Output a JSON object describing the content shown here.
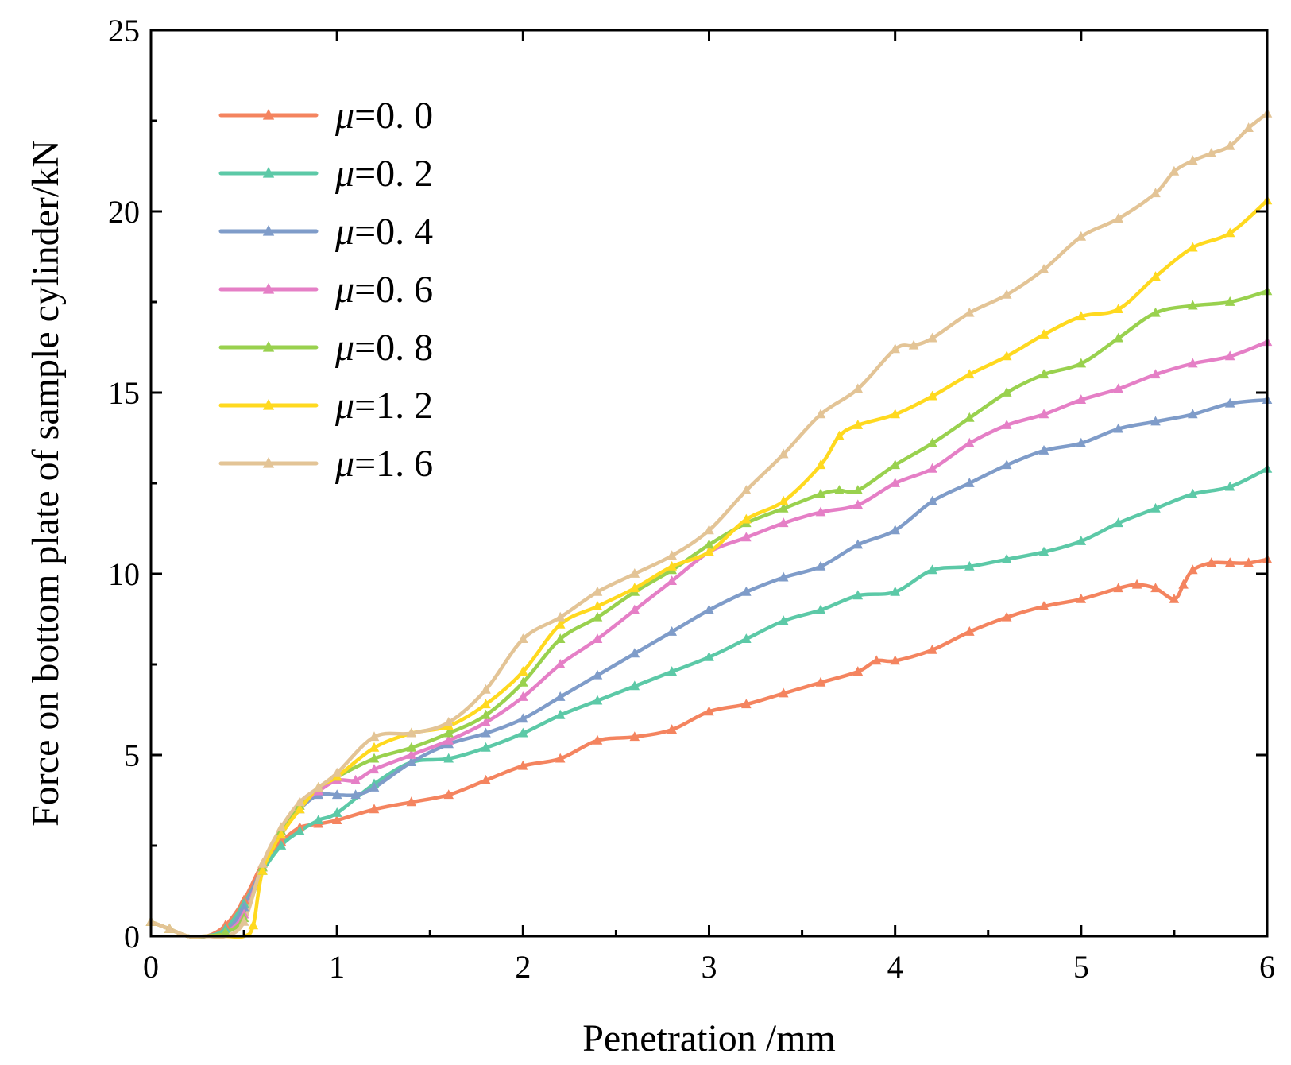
{
  "chart_data": {
    "type": "line",
    "title": "",
    "xlabel": "Penetration /mm",
    "ylabel": "Force on bottom plate of sample cylinder/kN",
    "xlim": [
      0,
      6
    ],
    "ylim": [
      0,
      25
    ],
    "xticks": [
      "0",
      "1",
      "2",
      "3",
      "4",
      "5",
      "6"
    ],
    "yticks": [
      "0",
      "5",
      "10",
      "15",
      "20",
      "25"
    ],
    "grid": false,
    "legend_position": "top-left",
    "marker": "triangle",
    "series": [
      {
        "name": "μ=0. 0",
        "mu_symbol": "μ",
        "mu_value": "=0. 0",
        "color": "#F4845F",
        "x": [
          0,
          0.1,
          0.2,
          0.3,
          0.4,
          0.5,
          0.6,
          0.7,
          0.8,
          0.9,
          1.0,
          1.2,
          1.4,
          1.6,
          1.8,
          2.0,
          2.2,
          2.4,
          2.6,
          2.8,
          3.0,
          3.2,
          3.4,
          3.6,
          3.8,
          3.9,
          4.0,
          4.2,
          4.4,
          4.6,
          4.8,
          5.0,
          5.2,
          5.3,
          5.4,
          5.5,
          5.55,
          5.6,
          5.7,
          5.8,
          5.9,
          6.0
        ],
        "y": [
          0.4,
          0.2,
          0.0,
          0.0,
          0.3,
          1.0,
          2.0,
          2.6,
          3.0,
          3.1,
          3.2,
          3.5,
          3.7,
          3.9,
          4.3,
          4.7,
          4.9,
          5.4,
          5.5,
          5.7,
          6.2,
          6.4,
          6.7,
          7.0,
          7.3,
          7.6,
          7.6,
          7.9,
          8.4,
          8.8,
          9.1,
          9.3,
          9.6,
          9.7,
          9.6,
          9.3,
          9.7,
          10.1,
          10.3,
          10.3,
          10.3,
          10.4
        ]
      },
      {
        "name": "μ=0. 2",
        "mu_symbol": "μ",
        "mu_value": "=0. 2",
        "color": "#5CC9A7",
        "x": [
          0,
          0.1,
          0.2,
          0.3,
          0.4,
          0.5,
          0.6,
          0.7,
          0.8,
          0.9,
          1.0,
          1.2,
          1.4,
          1.6,
          1.8,
          2.0,
          2.2,
          2.4,
          2.6,
          2.8,
          3.0,
          3.2,
          3.4,
          3.6,
          3.8,
          4.0,
          4.2,
          4.4,
          4.6,
          4.8,
          5.0,
          5.2,
          5.4,
          5.6,
          5.8,
          6.0
        ],
        "y": [
          0.4,
          0.2,
          0.0,
          0.0,
          0.2,
          0.9,
          1.8,
          2.5,
          2.9,
          3.2,
          3.4,
          4.2,
          4.8,
          4.9,
          5.2,
          5.6,
          6.1,
          6.5,
          6.9,
          7.3,
          7.7,
          8.2,
          8.7,
          9.0,
          9.4,
          9.5,
          10.1,
          10.2,
          10.4,
          10.6,
          10.9,
          11.4,
          11.8,
          12.2,
          12.4,
          12.9
        ]
      },
      {
        "name": "μ=0. 4",
        "mu_symbol": "μ",
        "mu_value": "=0. 4",
        "color": "#7F9CC9",
        "x": [
          0,
          0.1,
          0.2,
          0.3,
          0.4,
          0.5,
          0.6,
          0.7,
          0.8,
          0.9,
          1.0,
          1.1,
          1.2,
          1.4,
          1.6,
          1.8,
          2.0,
          2.2,
          2.4,
          2.6,
          2.8,
          3.0,
          3.2,
          3.4,
          3.6,
          3.8,
          4.0,
          4.2,
          4.4,
          4.6,
          4.8,
          5.0,
          5.2,
          5.4,
          5.6,
          5.8,
          6.0
        ],
        "y": [
          0.4,
          0.2,
          0.0,
          0.0,
          0.1,
          0.8,
          1.9,
          2.8,
          3.5,
          3.9,
          3.9,
          3.9,
          4.1,
          4.8,
          5.3,
          5.6,
          6.0,
          6.6,
          7.2,
          7.8,
          8.4,
          9.0,
          9.5,
          9.9,
          10.2,
          10.8,
          11.2,
          12.0,
          12.5,
          13.0,
          13.4,
          13.6,
          14.0,
          14.2,
          14.4,
          14.7,
          14.8
        ]
      },
      {
        "name": "μ=0. 6",
        "mu_symbol": "μ",
        "mu_value": "=0. 6",
        "color": "#E57FC6",
        "x": [
          0,
          0.1,
          0.2,
          0.3,
          0.4,
          0.5,
          0.6,
          0.7,
          0.8,
          0.9,
          1.0,
          1.1,
          1.2,
          1.4,
          1.6,
          1.8,
          2.0,
          2.2,
          2.4,
          2.6,
          2.8,
          3.0,
          3.2,
          3.4,
          3.6,
          3.8,
          4.0,
          4.2,
          4.4,
          4.6,
          4.8,
          5.0,
          5.2,
          5.4,
          5.6,
          5.8,
          6.0
        ],
        "y": [
          0.4,
          0.2,
          0.0,
          0.0,
          0.1,
          0.6,
          1.9,
          2.9,
          3.6,
          4.0,
          4.3,
          4.3,
          4.6,
          5.0,
          5.4,
          5.9,
          6.6,
          7.5,
          8.2,
          9.0,
          9.8,
          10.6,
          11.0,
          11.4,
          11.7,
          11.9,
          12.5,
          12.9,
          13.6,
          14.1,
          14.4,
          14.8,
          15.1,
          15.5,
          15.8,
          16.0,
          16.4
        ]
      },
      {
        "name": "μ=0. 8",
        "mu_symbol": "μ",
        "mu_value": "=0. 8",
        "color": "#99D14E",
        "x": [
          0,
          0.1,
          0.2,
          0.3,
          0.4,
          0.5,
          0.6,
          0.7,
          0.8,
          0.9,
          1.0,
          1.2,
          1.4,
          1.6,
          1.8,
          2.0,
          2.2,
          2.4,
          2.6,
          2.8,
          3.0,
          3.2,
          3.4,
          3.6,
          3.7,
          3.8,
          4.0,
          4.2,
          4.4,
          4.6,
          4.8,
          5.0,
          5.2,
          5.4,
          5.6,
          5.8,
          6.0
        ],
        "y": [
          0.4,
          0.2,
          0.0,
          0.0,
          0.1,
          0.5,
          1.9,
          2.9,
          3.6,
          4.1,
          4.4,
          4.9,
          5.2,
          5.6,
          6.1,
          7.0,
          8.2,
          8.8,
          9.5,
          10.1,
          10.8,
          11.4,
          11.8,
          12.2,
          12.3,
          12.3,
          13.0,
          13.6,
          14.3,
          15.0,
          15.5,
          15.8,
          16.5,
          17.2,
          17.4,
          17.5,
          17.8
        ]
      },
      {
        "name": "μ=1. 2",
        "mu_symbol": "μ",
        "mu_value": "=1. 2",
        "color": "#FFD91F",
        "x": [
          0,
          0.1,
          0.2,
          0.3,
          0.4,
          0.5,
          0.55,
          0.6,
          0.7,
          0.8,
          0.9,
          1.0,
          1.2,
          1.4,
          1.6,
          1.8,
          2.0,
          2.2,
          2.4,
          2.6,
          2.8,
          3.0,
          3.2,
          3.4,
          3.6,
          3.7,
          3.8,
          4.0,
          4.2,
          4.4,
          4.6,
          4.8,
          5.0,
          5.2,
          5.4,
          5.6,
          5.8,
          6.0
        ],
        "y": [
          0.4,
          0.2,
          0.0,
          0.0,
          0.0,
          0.0,
          0.3,
          1.8,
          2.8,
          3.5,
          4.1,
          4.4,
          5.2,
          5.6,
          5.8,
          6.4,
          7.3,
          8.6,
          9.1,
          9.6,
          10.2,
          10.6,
          11.5,
          12.0,
          13.0,
          13.8,
          14.1,
          14.4,
          14.9,
          15.5,
          16.0,
          16.6,
          17.1,
          17.3,
          18.2,
          19.0,
          19.4,
          20.3
        ]
      },
      {
        "name": "μ=1. 6",
        "mu_symbol": "μ",
        "mu_value": "=1. 6",
        "color": "#E3C496",
        "x": [
          0,
          0.1,
          0.2,
          0.3,
          0.4,
          0.5,
          0.6,
          0.7,
          0.8,
          0.9,
          1.0,
          1.2,
          1.4,
          1.6,
          1.8,
          2.0,
          2.2,
          2.4,
          2.6,
          2.8,
          3.0,
          3.2,
          3.4,
          3.6,
          3.8,
          4.0,
          4.1,
          4.2,
          4.4,
          4.6,
          4.8,
          5.0,
          5.2,
          5.4,
          5.5,
          5.6,
          5.7,
          5.8,
          5.9,
          6.0
        ],
        "y": [
          0.4,
          0.2,
          0.0,
          0.0,
          0.0,
          0.4,
          2.0,
          3.0,
          3.7,
          4.1,
          4.5,
          5.5,
          5.6,
          5.9,
          6.8,
          8.2,
          8.8,
          9.5,
          10.0,
          10.5,
          11.2,
          12.3,
          13.3,
          14.4,
          15.1,
          16.2,
          16.3,
          16.5,
          17.2,
          17.7,
          18.4,
          19.3,
          19.8,
          20.5,
          21.1,
          21.4,
          21.6,
          21.8,
          22.3,
          22.7
        ]
      }
    ]
  }
}
